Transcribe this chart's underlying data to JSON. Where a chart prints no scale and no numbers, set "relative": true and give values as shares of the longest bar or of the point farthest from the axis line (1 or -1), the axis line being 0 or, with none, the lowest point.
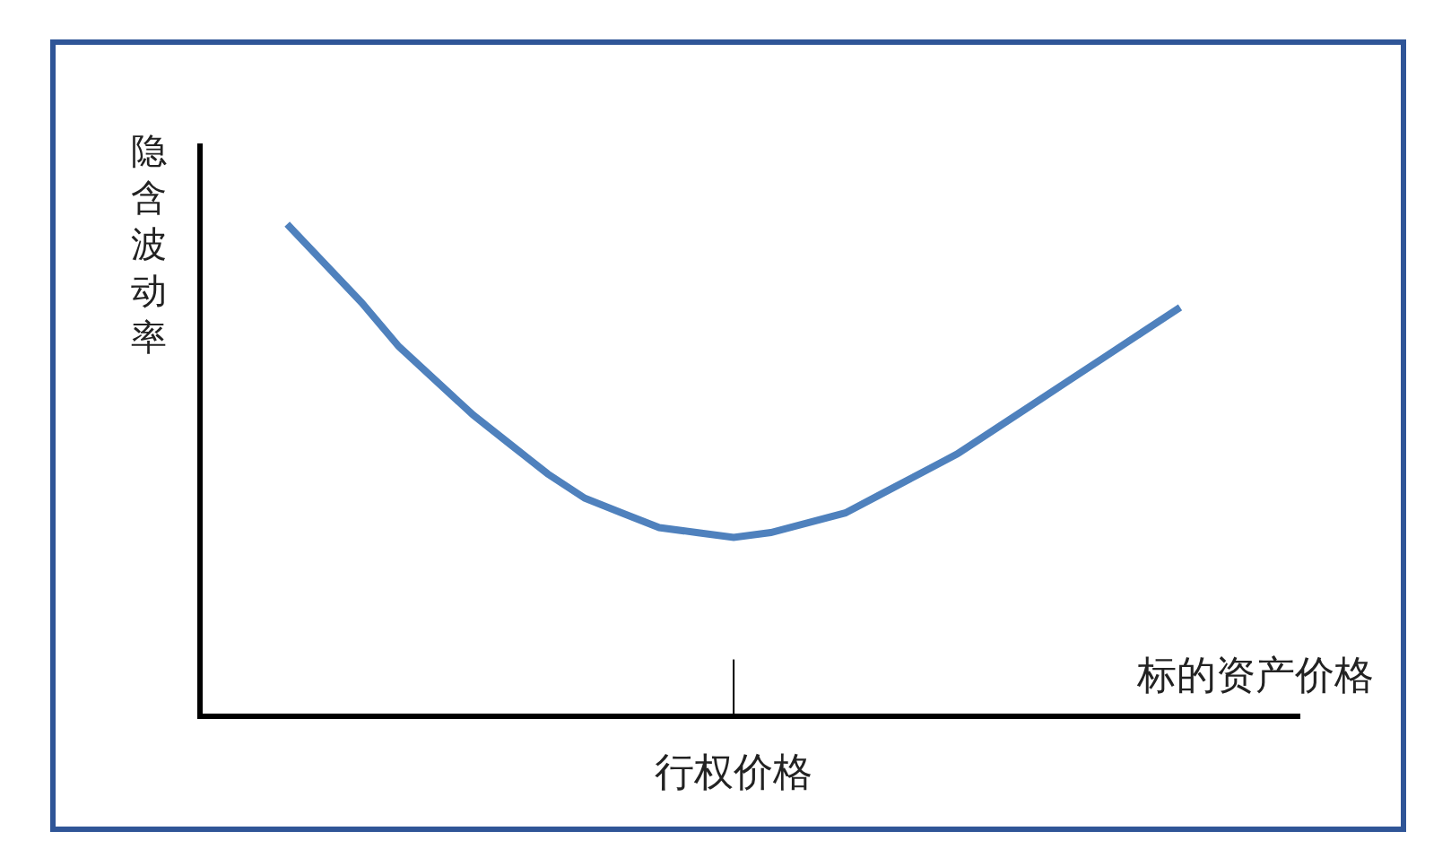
{
  "chart_data": {
    "type": "line",
    "relative": true,
    "xlabel": "标的资产价格",
    "ylabel": "隐含波动率",
    "annotations": [
      "行权价格"
    ],
    "categories": [
      null,
      null,
      null,
      null,
      null,
      null,
      null,
      null,
      null,
      null,
      null,
      null,
      null,
      null,
      null,
      null,
      null,
      null,
      null,
      null,
      null,
      null,
      null,
      null,
      null
    ],
    "series": [
      {
        "color": "#4f81bd",
        "values": [
          1,
          0.92,
          0.84,
          0.75,
          0.68,
          0.61,
          0.55,
          0.49,
          0.44,
          0.41,
          0.38,
          0.37,
          0.36,
          0.37,
          0.39,
          0.41,
          0.45,
          0.49,
          0.53,
          0.58,
          0.63,
          0.68,
          0.73,
          0.78,
          0.83
        ]
      }
    ],
    "grid": false,
    "marker": "none",
    "line_style": "solid"
  }
}
